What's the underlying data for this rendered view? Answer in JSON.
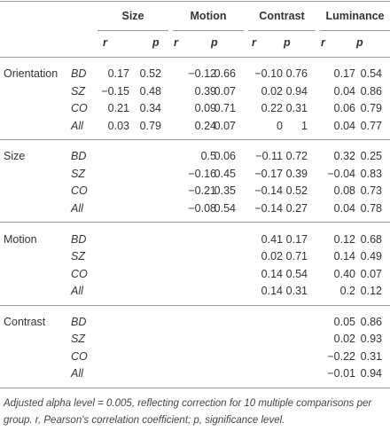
{
  "table": {
    "column_groups": [
      {
        "label": "Size",
        "stats": [
          "r",
          "p"
        ]
      },
      {
        "label": "Motion",
        "stats": [
          "r",
          "p"
        ]
      },
      {
        "label": "Contrast",
        "stats": [
          "r",
          "p"
        ]
      },
      {
        "label": "Luminance",
        "stats": [
          "r",
          "p"
        ]
      }
    ],
    "sections": [
      {
        "label": "Orientation",
        "rows": [
          {
            "group": "BD",
            "cells": [
              "0.17",
              "0.52",
              "−0.12",
              "0.66",
              "−0.10",
              "0.76",
              "0.17",
              "0.54"
            ]
          },
          {
            "group": "SZ",
            "cells": [
              "−0.15",
              "0.48",
              "0.39",
              "0.07",
              "0.02",
              "0.94",
              "0.04",
              "0.86"
            ]
          },
          {
            "group": "CO",
            "cells": [
              "0.21",
              "0.34",
              "0.09",
              "0.71",
              "0.22",
              "0.31",
              "0.06",
              "0.79"
            ]
          },
          {
            "group": "All",
            "cells": [
              "0.03",
              "0.79",
              "0.24",
              "0.07",
              "0",
              "1",
              "0.04",
              "0.77"
            ]
          }
        ]
      },
      {
        "label": "Size",
        "rows": [
          {
            "group": "BD",
            "cells": [
              null,
              null,
              "0.5",
              "0.06",
              "−0.11",
              "0.72",
              "0.32",
              "0.25"
            ]
          },
          {
            "group": "SZ",
            "cells": [
              null,
              null,
              "−0.16",
              "0.45",
              "−0.17",
              "0.39",
              "−0.04",
              "0.83"
            ]
          },
          {
            "group": "CO",
            "cells": [
              null,
              null,
              "−0.21",
              "0.35",
              "−0.14",
              "0.52",
              "0.08",
              "0.73"
            ]
          },
          {
            "group": "All",
            "cells": [
              null,
              null,
              "−0.08",
              "0.54",
              "−0.14",
              "0.27",
              "0.04",
              "0.78"
            ]
          }
        ]
      },
      {
        "label": "Motion",
        "rows": [
          {
            "group": "BD",
            "cells": [
              null,
              null,
              null,
              null,
              "0.41",
              "0.17",
              "0.12",
              "0.68"
            ]
          },
          {
            "group": "SZ",
            "cells": [
              null,
              null,
              null,
              null,
              "0.02",
              "0.71",
              "0.14",
              "0.49"
            ]
          },
          {
            "group": "CO",
            "cells": [
              null,
              null,
              null,
              null,
              "0.14",
              "0.54",
              "0.40",
              "0.07"
            ]
          },
          {
            "group": "All",
            "cells": [
              null,
              null,
              null,
              null,
              "0.14",
              "0.31",
              "0.2",
              "0.12"
            ]
          }
        ]
      },
      {
        "label": "Contrast",
        "rows": [
          {
            "group": "BD",
            "cells": [
              null,
              null,
              null,
              null,
              null,
              null,
              "0.05",
              "0.86"
            ]
          },
          {
            "group": "SZ",
            "cells": [
              null,
              null,
              null,
              null,
              null,
              null,
              "0.02",
              "0.93"
            ]
          },
          {
            "group": "CO",
            "cells": [
              null,
              null,
              null,
              null,
              null,
              null,
              "−0.22",
              "0.31"
            ]
          },
          {
            "group": "All",
            "cells": [
              null,
              null,
              null,
              null,
              null,
              null,
              "−0.01",
              "0.94"
            ]
          }
        ]
      }
    ],
    "footnote": "Adjusted alpha level = 0.005, reflecting correction for 10 multiple comparisons per group. r, Pearson's correlation coefficient; p, significance level."
  }
}
